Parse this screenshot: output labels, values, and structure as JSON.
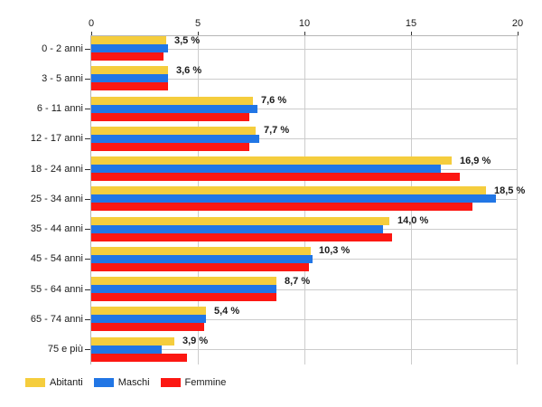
{
  "chart_data": {
    "type": "bar",
    "orientation": "horizontal",
    "title": "",
    "xlabel": "",
    "ylabel": "",
    "xlim": [
      0,
      20
    ],
    "x_ticks": [
      0,
      5,
      10,
      15,
      20
    ],
    "grid": true,
    "legend_position": "bottom-left",
    "categories": [
      "0 - 2 anni",
      "3 - 5 anni",
      "6 - 11 anni",
      "12 - 17 anni",
      "18 - 24 anni",
      "25 - 34 anni",
      "35 - 44 anni",
      "45 - 54 anni",
      "55 - 64 anni",
      "65 - 74 anni",
      "75 e più"
    ],
    "series": [
      {
        "name": "Abitanti",
        "color": "#F5CD3D",
        "values": [
          3.5,
          3.6,
          7.6,
          7.7,
          16.9,
          18.5,
          14.0,
          10.3,
          8.7,
          5.4,
          3.9
        ]
      },
      {
        "name": "Maschi",
        "color": "#2176E5",
        "values": [
          3.6,
          3.6,
          7.8,
          7.9,
          16.4,
          19.0,
          13.7,
          10.4,
          8.7,
          5.4,
          3.3
        ]
      },
      {
        "name": "Femmine",
        "color": "#FC1712",
        "values": [
          3.4,
          3.6,
          7.4,
          7.4,
          17.3,
          17.9,
          14.1,
          10.2,
          8.7,
          5.3,
          4.5
        ]
      }
    ],
    "value_labels": [
      "3,5 %",
      "3,6 %",
      "7,6 %",
      "7,7 %",
      "16,9 %",
      "18,5 %",
      "14,0 %",
      "10,3 %",
      "8,7 %",
      "5,4 %",
      "3,9 %"
    ]
  },
  "colors": {
    "gridline": "#cccccc",
    "axis_line": "#b6b6b6",
    "text": "#1a1a1a",
    "background": "#ffffff"
  }
}
